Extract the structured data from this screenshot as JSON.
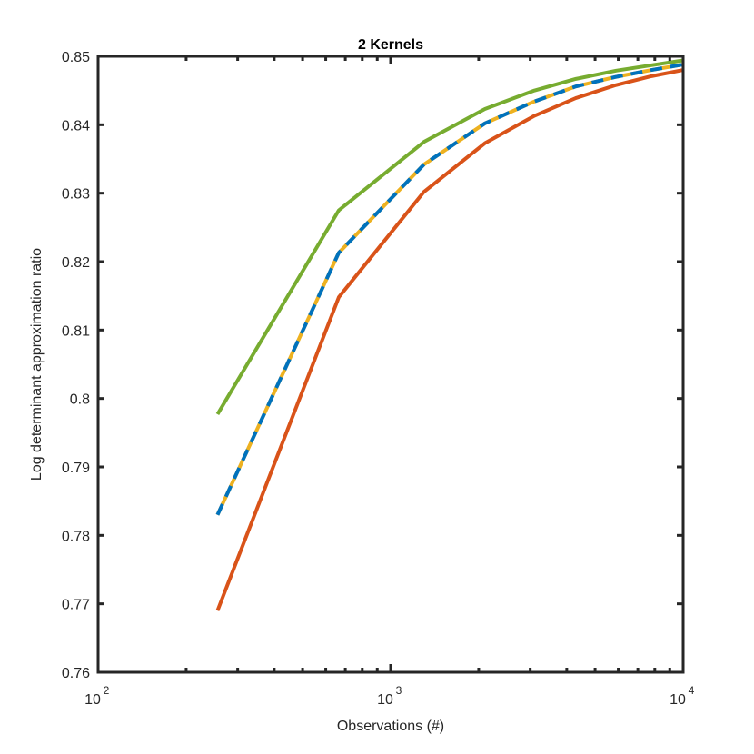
{
  "chart_data": {
    "type": "line",
    "title": "2 Kernels",
    "xlabel": "Observations (#)",
    "ylabel": "Log determinant approximation ratio",
    "xscale": "log",
    "xlim": [
      100,
      10000
    ],
    "ylim": [
      0.76,
      0.85
    ],
    "grid": false,
    "legend": "none",
    "x_ticks": [
      {
        "value": 100,
        "base": "10",
        "exp": "2"
      },
      {
        "value": 1000,
        "base": "10",
        "exp": "3"
      },
      {
        "value": 10000,
        "base": "10",
        "exp": "4"
      }
    ],
    "y_ticks": [
      {
        "value": 0.76,
        "label": "0.76"
      },
      {
        "value": 0.77,
        "label": "0.77"
      },
      {
        "value": 0.78,
        "label": "0.78"
      },
      {
        "value": 0.79,
        "label": "0.79"
      },
      {
        "value": 0.8,
        "label": "0.8"
      },
      {
        "value": 0.81,
        "label": "0.81"
      },
      {
        "value": 0.82,
        "label": "0.82"
      },
      {
        "value": 0.83,
        "label": "0.83"
      },
      {
        "value": 0.84,
        "label": "0.84"
      },
      {
        "value": 0.85,
        "label": "0.85"
      }
    ],
    "x": [
      256,
      665,
      1300,
      2100,
      3100,
      4300,
      5900,
      7800,
      10000
    ],
    "series": [
      {
        "color": "#77AC30",
        "style": "solid",
        "values": [
          0.7977,
          0.8275,
          0.8375,
          0.8423,
          0.845,
          0.8467,
          0.8479,
          0.8487,
          0.8494
        ]
      },
      {
        "color": "#D95319",
        "style": "solid",
        "values": [
          0.769,
          0.8148,
          0.8302,
          0.8373,
          0.8413,
          0.8439,
          0.8458,
          0.8471,
          0.848
        ]
      },
      {
        "color": "#EDB120",
        "style": "solid",
        "values": [
          0.783,
          0.8213,
          0.8342,
          0.8402,
          0.8434,
          0.8456,
          0.847,
          0.848,
          0.8488
        ]
      },
      {
        "color": "#0072BD",
        "style": "dashed",
        "values": [
          0.783,
          0.8213,
          0.8342,
          0.8402,
          0.8434,
          0.8456,
          0.847,
          0.848,
          0.8488
        ]
      }
    ]
  }
}
